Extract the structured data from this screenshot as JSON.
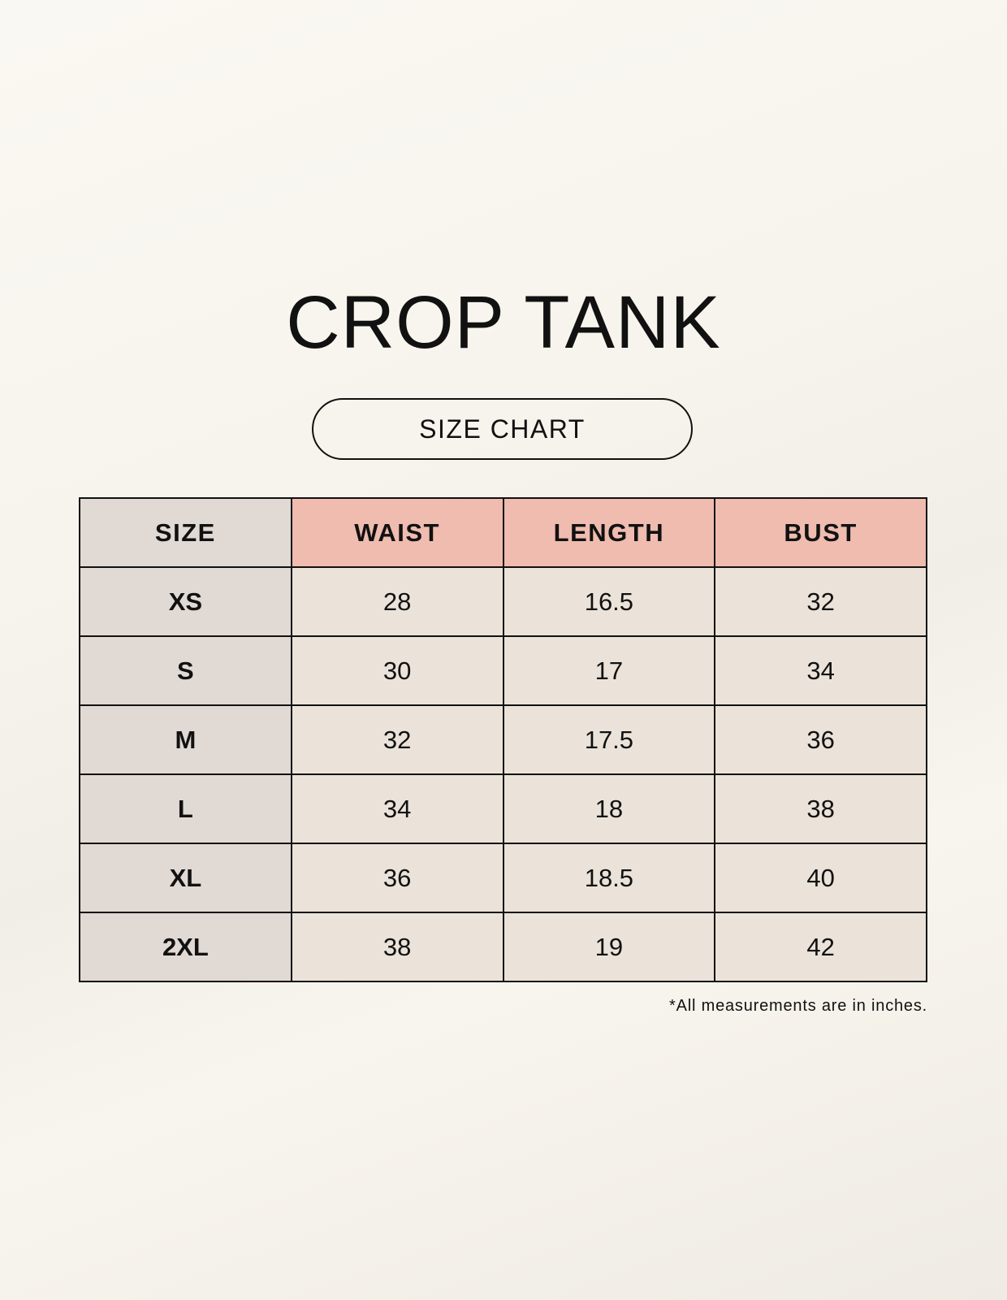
{
  "title": "CROP TANK",
  "subtitle": "SIZE CHART",
  "colors": {
    "size_column": "#e1d9d4",
    "header": "#efbcaf",
    "cell": "#ebe3d9"
  },
  "table": {
    "headers": [
      "SIZE",
      "WAIST",
      "LENGTH",
      "BUST"
    ],
    "rows": [
      [
        "XS",
        "28",
        "16.5",
        "32"
      ],
      [
        "S",
        "30",
        "17",
        "34"
      ],
      [
        "M",
        "32",
        "17.5",
        "36"
      ],
      [
        "L",
        "34",
        "18",
        "38"
      ],
      [
        "XL",
        "36",
        "18.5",
        "40"
      ],
      [
        "2XL",
        "38",
        "19",
        "42"
      ]
    ]
  },
  "footnote": "*All measurements are in inches."
}
